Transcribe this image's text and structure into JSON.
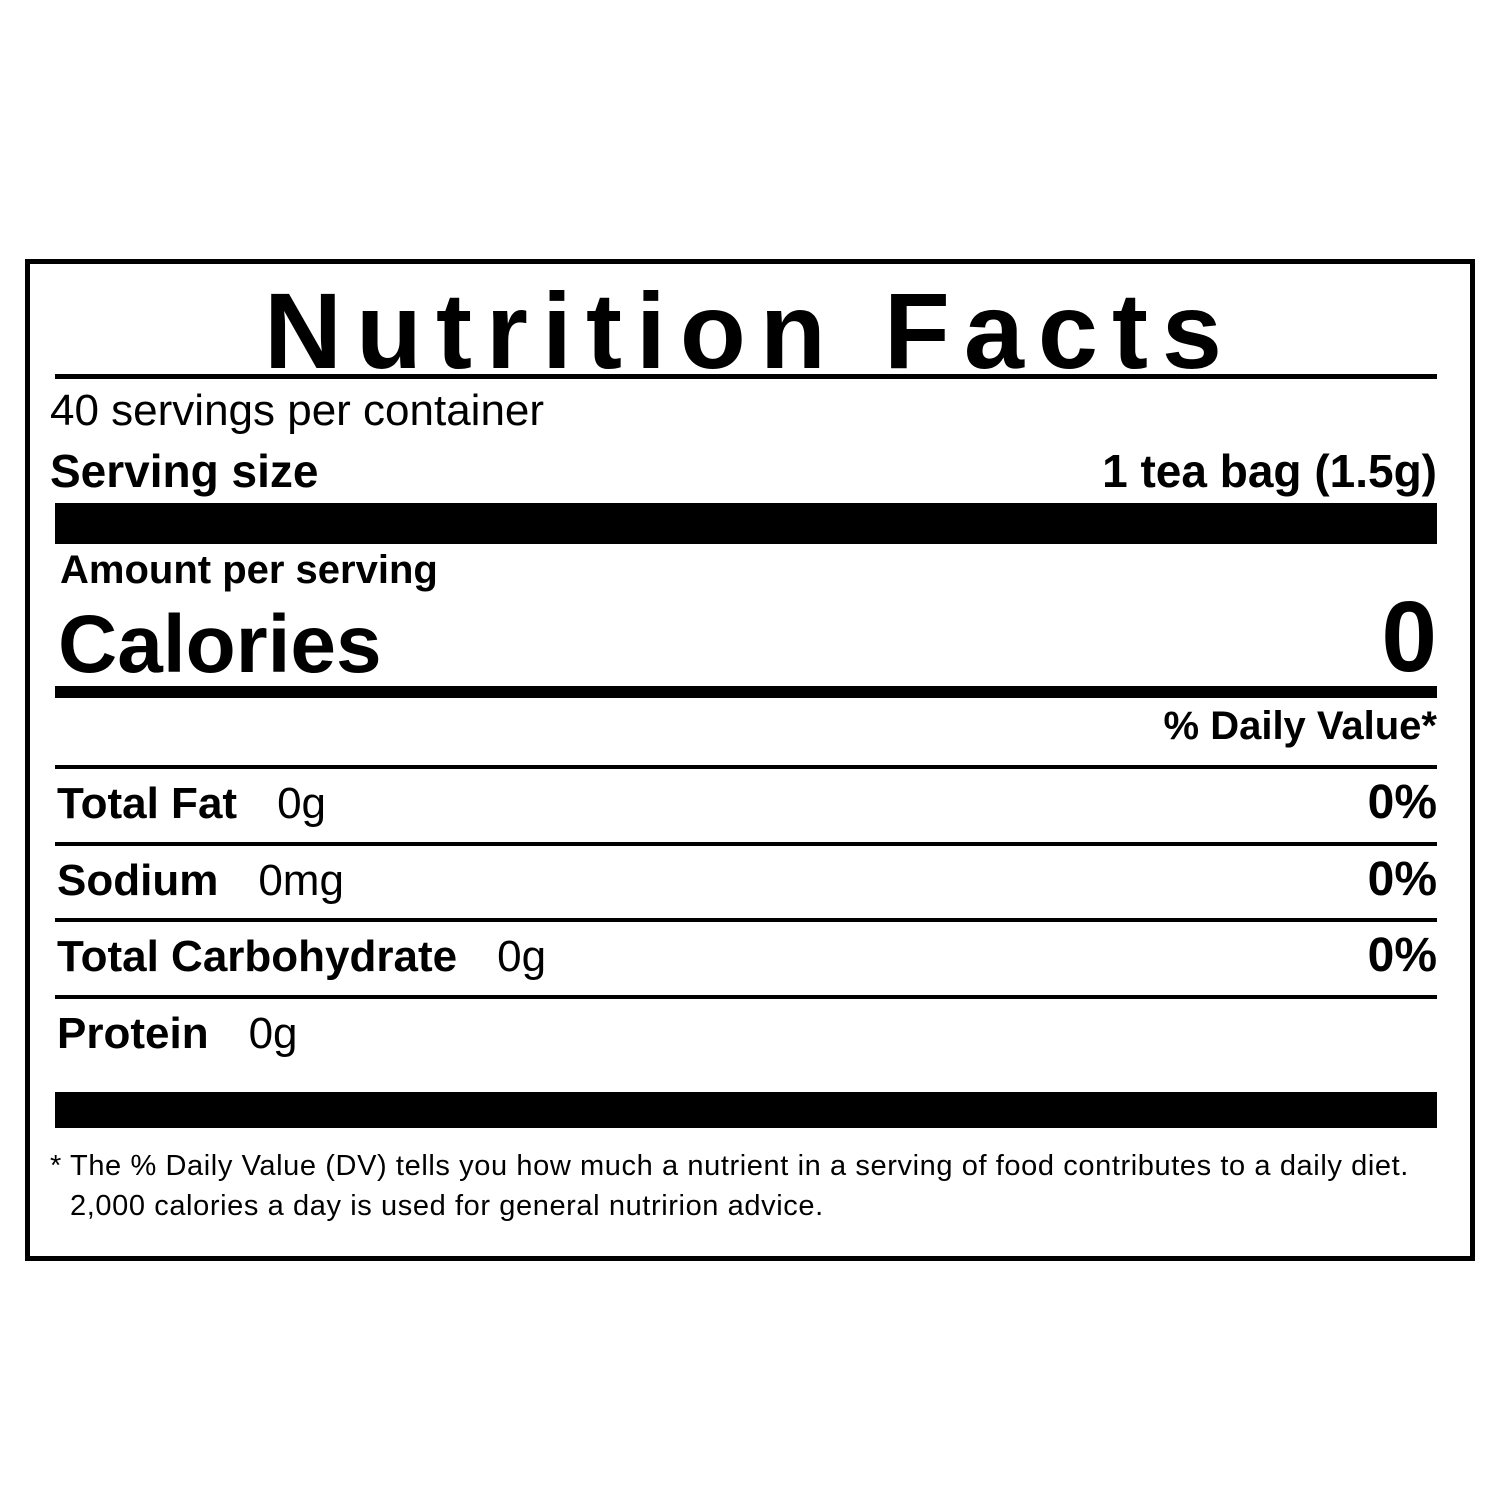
{
  "label": {
    "title": "Nutrition Facts",
    "servings": "40 servings per container",
    "serving_size_label": "Serving size",
    "serving_size_value": "1 tea bag (1.5g)",
    "amount_per_serving": "Amount per serving",
    "calories_label": "Calories",
    "calories_value": "0",
    "daily_value_header": "% Daily Value*",
    "nutrients": [
      {
        "name": "Total Fat",
        "amount": "0g",
        "dv": "0%"
      },
      {
        "name": "Sodium",
        "amount": "0mg",
        "dv": "0%"
      },
      {
        "name": "Total Carbohydrate",
        "amount": "0g",
        "dv": "0%"
      },
      {
        "name": "Protein",
        "amount": "0g"
      }
    ],
    "footnote": "* The % Daily Value (DV) tells you how much a nutrient in a serving of food contributes to a daily diet. 2,000 calories a day is used for general nutririon advice."
  }
}
